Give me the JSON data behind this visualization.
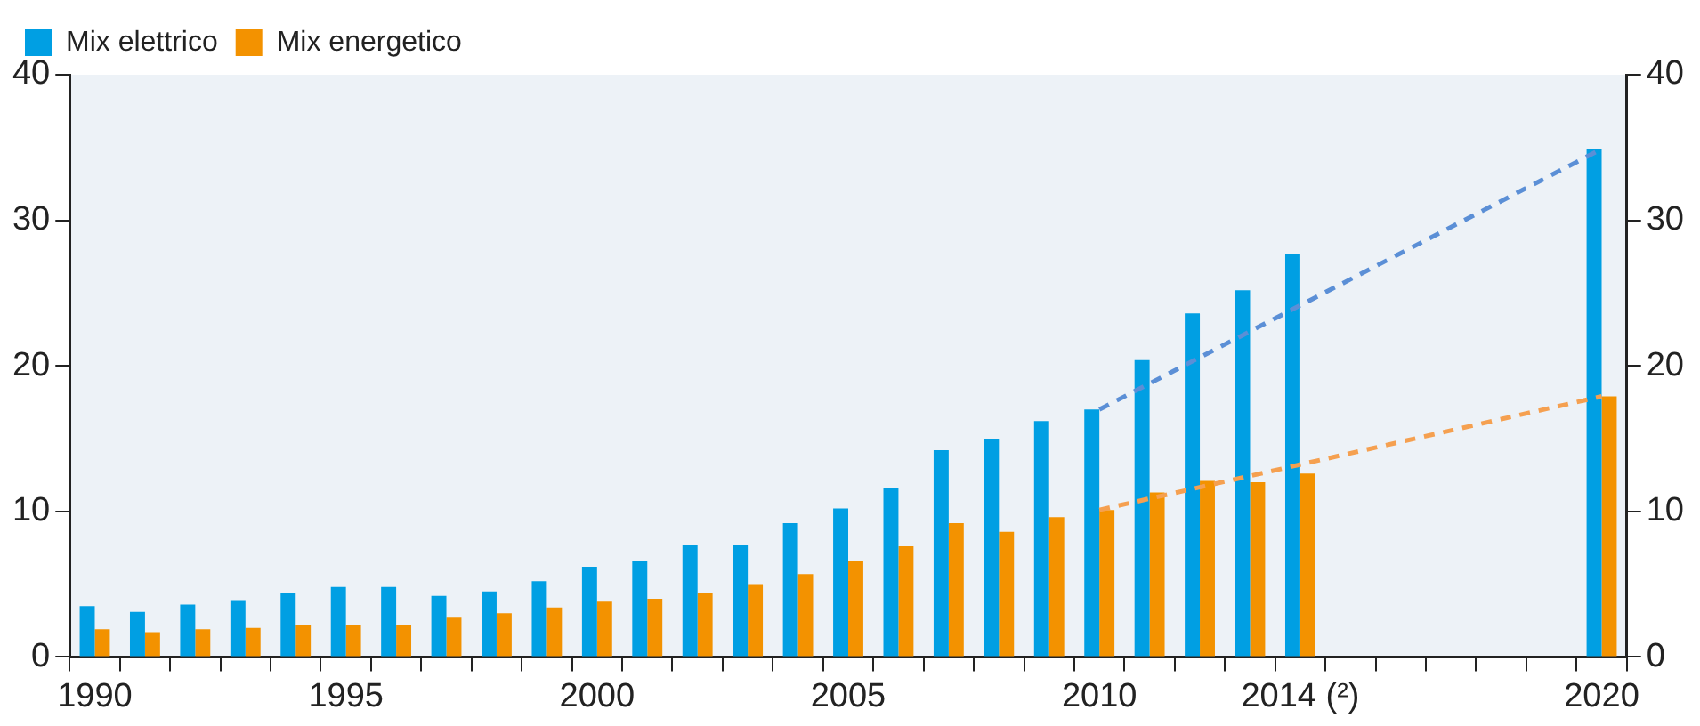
{
  "chart_data": {
    "type": "bar",
    "categories": [
      "1990",
      null,
      null,
      null,
      null,
      "1995",
      null,
      null,
      null,
      null,
      "2000",
      null,
      null,
      null,
      null,
      "2005",
      null,
      null,
      null,
      null,
      "2010",
      null,
      null,
      null,
      "2014 (²)",
      null,
      null,
      null,
      null,
      null,
      "2020"
    ],
    "series": [
      {
        "name": "Mix elettrico",
        "color": "#009fe3",
        "values": [
          3.5,
          3.1,
          3.6,
          3.9,
          4.4,
          4.8,
          4.8,
          4.2,
          4.5,
          5.2,
          6.2,
          6.6,
          7.7,
          7.7,
          9.2,
          10.2,
          11.6,
          14.2,
          15.0,
          16.2,
          17.0,
          20.4,
          23.6,
          25.2,
          27.7,
          null,
          null,
          null,
          null,
          null,
          34.9
        ]
      },
      {
        "name": "Mix energetico",
        "color": "#f39200",
        "values": [
          1.9,
          1.7,
          1.9,
          2.0,
          2.2,
          2.2,
          2.2,
          2.7,
          3.0,
          3.4,
          3.8,
          4.0,
          4.4,
          5.0,
          5.7,
          6.6,
          7.6,
          9.2,
          8.6,
          9.6,
          10.1,
          11.3,
          12.1,
          12.0,
          12.6,
          null,
          null,
          null,
          null,
          null,
          17.9
        ]
      },
      {
        "type": "line",
        "color": "#5b8fd6",
        "line_style": "dashed",
        "marker": "none",
        "values": [
          null,
          null,
          null,
          null,
          null,
          null,
          null,
          null,
          null,
          null,
          null,
          null,
          null,
          null,
          null,
          null,
          null,
          null,
          null,
          null,
          17.0,
          null,
          null,
          null,
          null,
          null,
          null,
          null,
          null,
          null,
          34.9
        ]
      },
      {
        "type": "line",
        "color": "#f5a050",
        "line_style": "dashed",
        "marker": "none",
        "values": [
          null,
          null,
          null,
          null,
          null,
          null,
          null,
          null,
          null,
          null,
          null,
          null,
          null,
          null,
          null,
          null,
          null,
          null,
          null,
          null,
          10.1,
          null,
          null,
          null,
          null,
          null,
          null,
          null,
          null,
          null,
          17.9
        ]
      }
    ],
    "ylim": [
      0,
      40
    ],
    "yticks": [
      0,
      10,
      20,
      30,
      40
    ],
    "y2lim": [
      0,
      40
    ],
    "y2ticks": [
      0,
      10,
      20,
      30,
      40
    ],
    "grid": false,
    "legend": "top left"
  }
}
